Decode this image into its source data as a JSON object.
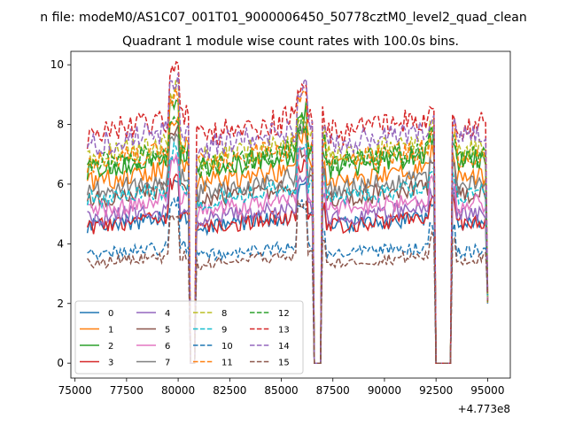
{
  "chart_data": {
    "type": "line",
    "suptitle": "n file: modeM0/AS1C07_001T01_9000006450_50778cztM0_level2_quad_clean",
    "title": "Quadrant 1 module wise count rates with 100.0s bins.",
    "xlabel": "",
    "ylabel": "",
    "x_offset_label": "+4.773e8",
    "xlim": [
      74800,
      96100
    ],
    "ylim": [
      -0.5,
      10.45
    ],
    "x_ticks": [
      75000,
      77500,
      80000,
      82500,
      85000,
      87500,
      90000,
      92500,
      95000
    ],
    "x_tick_labels": [
      "75000",
      "77500",
      "80000",
      "82500",
      "85000",
      "87500",
      "90000",
      "92500",
      "95000"
    ],
    "y_ticks": [
      0,
      2,
      4,
      6,
      8,
      10
    ],
    "y_tick_labels": [
      "0",
      "2",
      "4",
      "6",
      "8",
      "10"
    ],
    "x_start": 75600,
    "x_end": 95000,
    "bin_width": 100,
    "gaps": [
      [
        80600,
        80800
      ],
      [
        86600,
        86900
      ],
      [
        92500,
        93200
      ]
    ],
    "legend": {
      "location": "lower-left",
      "columns": 4
    },
    "series": [
      {
        "name": "0",
        "color": "#1f77b4",
        "style": "solid",
        "level": 4.9
      },
      {
        "name": "1",
        "color": "#ff7f0e",
        "style": "solid",
        "level": 6.5
      },
      {
        "name": "2",
        "color": "#2ca02c",
        "style": "solid",
        "level": 7.0
      },
      {
        "name": "3",
        "color": "#d62728",
        "style": "solid",
        "level": 4.9
      },
      {
        "name": "4",
        "color": "#9467bd",
        "style": "solid",
        "level": 5.2
      },
      {
        "name": "5",
        "color": "#8c564b",
        "style": "solid",
        "level": 5.9
      },
      {
        "name": "6",
        "color": "#e377c2",
        "style": "solid",
        "level": 5.5
      },
      {
        "name": "7",
        "color": "#7f7f7f",
        "style": "solid",
        "level": 6.2
      },
      {
        "name": "8",
        "color": "#bcbd22",
        "style": "dashed",
        "level": 7.4
      },
      {
        "name": "9",
        "color": "#17becf",
        "style": "dashed",
        "level": 5.9
      },
      {
        "name": "10",
        "color": "#1f77b4",
        "style": "dashed",
        "level": 3.9
      },
      {
        "name": "11",
        "color": "#ff7f0e",
        "style": "dashed",
        "level": 7.2
      },
      {
        "name": "12",
        "color": "#2ca02c",
        "style": "dashed",
        "level": 7.1
      },
      {
        "name": "13",
        "color": "#d62728",
        "style": "dashed",
        "level": 8.2
      },
      {
        "name": "14",
        "color": "#9467bd",
        "style": "dashed",
        "level": 7.8
      },
      {
        "name": "15",
        "color": "#8c564b",
        "style": "dashed",
        "level": 3.6
      }
    ]
  }
}
